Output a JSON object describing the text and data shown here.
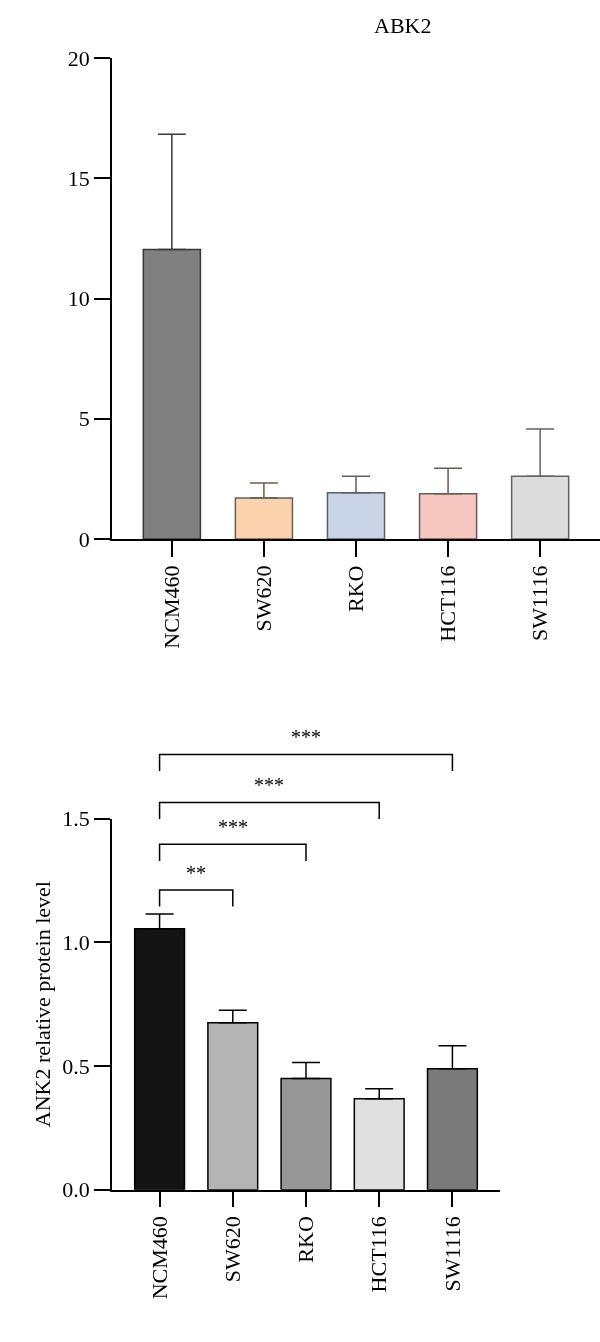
{
  "chart_data": [
    {
      "type": "bar",
      "title": "ABK2",
      "categories": [
        "NCM460",
        "SW620",
        "RKO",
        "HCT116",
        "SW1116"
      ],
      "values": [
        12.04,
        1.71,
        1.92,
        1.88,
        2.61
      ],
      "errors": [
        [
          12.04,
          16.83
        ],
        [
          1.71,
          2.33
        ],
        [
          1.92,
          2.61
        ],
        [
          1.88,
          2.94
        ],
        [
          2.61,
          4.57
        ]
      ],
      "colors": [
        "#808080",
        "#f9d3ad",
        "#c9d5e6",
        "#f6c6c1",
        "#dcdcdc"
      ],
      "ylim": [
        0,
        20
      ],
      "yticks": [
        0,
        5,
        10,
        15,
        20
      ]
    },
    {
      "type": "bar",
      "ylabel": "ANK2 relative protein level",
      "categories": [
        "NCM460",
        "SW620",
        "RKO",
        "HCT116",
        "SW1116"
      ],
      "values": [
        1.055,
        0.675,
        0.449,
        0.368,
        0.489
      ],
      "errors": [
        [
          1.055,
          1.115
        ],
        [
          0.675,
          0.725
        ],
        [
          0.449,
          0.514
        ],
        [
          0.368,
          0.408
        ],
        [
          0.489,
          0.582
        ]
      ],
      "colors": [
        "#141414",
        "#b4b4b4",
        "#979797",
        "#e0e0e0",
        "#7a7a7a"
      ],
      "ylim": [
        0,
        1.5
      ],
      "yticks": [
        {
          "value": 0,
          "label": "0.0"
        },
        {
          "value": 0.5,
          "label": "0.5"
        },
        {
          "value": 1,
          "label": "1.0"
        },
        {
          "value": 1.5,
          "label": "1.5"
        }
      ],
      "annotations": [
        "**",
        "***",
        "***",
        "***"
      ]
    }
  ]
}
